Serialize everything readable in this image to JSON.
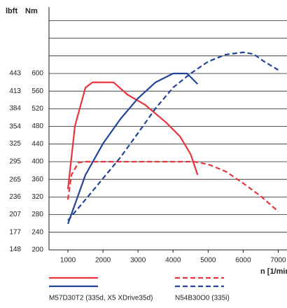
{
  "chart_data": {
    "type": "line",
    "y_label": "Nm",
    "y2_label": "lbft",
    "x_label": "n [1/min]",
    "xlim": [
      460,
      7050
    ],
    "xticks": [
      1000,
      2000,
      3000,
      4000,
      5000,
      6000,
      7000
    ],
    "ylim": [
      200,
      750
    ],
    "yticks": [
      200,
      240,
      280,
      320,
      360,
      400,
      440,
      480,
      520,
      560,
      600,
      {
        "value": 640,
        "label": null
      },
      {
        "value": 680,
        "label": null
      },
      {
        "value": 720,
        "label": null
      }
    ],
    "y2lim": [
      147.5,
      553.2
    ],
    "y2ticks": [
      148,
      177,
      207,
      236,
      265,
      295,
      325,
      354,
      384,
      413,
      443
    ],
    "grid": true,
    "series": [
      {
        "name": "M57D30T2 (335d, X5 XDrive35d)",
        "dash": false,
        "lines": [
          {
            "color": "#e8343c",
            "x": [
              1000,
              1200,
              1500,
              1700,
              2300,
              2700,
              3200,
              3800,
              4200,
              4500,
              4700
            ],
            "values": [
              338,
              481,
              568,
              580,
              580,
              552,
              529,
              489,
              457,
              417,
              370
            ]
          },
          {
            "color": "#23449a",
            "x": [
              1000,
              1500,
              2000,
              2500,
              3000,
              3500,
              4000,
              4400,
              4700
            ],
            "values": [
              259,
              370,
              441,
              497,
              544,
              580,
              600,
              600,
              576
            ]
          }
        ]
      },
      {
        "name": "N54B30O0 (335i)",
        "dash": true,
        "lines": [
          {
            "color": "#e8343c",
            "x": [
              1000,
              1100,
              1300,
              1500,
              4600,
              5000,
              5500,
              6000,
              6500,
              7000
            ],
            "values": [
              314,
              370,
              398,
              400,
              400,
              394,
              378,
              351,
              322,
              287
            ]
          },
          {
            "color": "#23449a",
            "x": [
              1000,
              1500,
              2000,
              2500,
              3000,
              3500,
              4000,
              4500,
              5000,
              5500,
              6000,
              6300,
              6600,
              7000
            ],
            "values": [
              267,
              314,
              362,
              410,
              465,
              521,
              568,
              600,
              627,
              643,
              648,
              644,
              627,
              608
            ]
          }
        ]
      }
    ]
  }
}
